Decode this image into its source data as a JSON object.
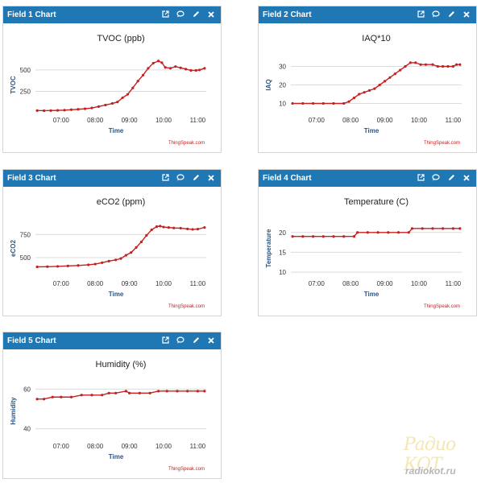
{
  "widgets": [
    {
      "header": "Field 1 Chart"
    },
    {
      "header": "Field 2 Chart"
    },
    {
      "header": "Field 3 Chart"
    },
    {
      "header": "Field 4 Chart"
    },
    {
      "header": "Field 5 Chart"
    }
  ],
  "credit": "ThingSpeak.com",
  "watermark": {
    "line1": "Радио КОТ",
    "line2": "radiokot.ru"
  },
  "colors": {
    "header": "#1f78b4",
    "series": "#c62020",
    "axis_label": "#2a5684",
    "credit": "#c62020"
  },
  "icons": [
    "external-link-icon",
    "comment-icon",
    "pencil-icon",
    "close-icon"
  ],
  "chart_data": [
    {
      "type": "line",
      "title": "TVOC (ppb)",
      "xlabel": "Time",
      "ylabel": "TVOC",
      "xlim": [
        6.25,
        11.25
      ],
      "ylim": [
        0,
        650
      ],
      "x_ticks": [
        {
          "v": 7,
          "label": "07:00"
        },
        {
          "v": 8,
          "label": "08:00"
        },
        {
          "v": 9,
          "label": "09:00"
        },
        {
          "v": 10,
          "label": "10:00"
        },
        {
          "v": 11,
          "label": "11:00"
        }
      ],
      "y_ticks": [
        {
          "v": 250,
          "label": "250"
        },
        {
          "v": 500,
          "label": "500"
        }
      ],
      "grid": true,
      "series": [
        {
          "points": [
            [
              6.3,
              25
            ],
            [
              6.5,
              24
            ],
            [
              6.7,
              25
            ],
            [
              6.9,
              27
            ],
            [
              7.1,
              30
            ],
            [
              7.3,
              35
            ],
            [
              7.5,
              40
            ],
            [
              7.7,
              46
            ],
            [
              7.9,
              55
            ],
            [
              8.1,
              72
            ],
            [
              8.3,
              90
            ],
            [
              8.5,
              108
            ],
            [
              8.65,
              125
            ],
            [
              8.8,
              175
            ],
            [
              8.95,
              215
            ],
            [
              9.1,
              290
            ],
            [
              9.25,
              370
            ],
            [
              9.4,
              440
            ],
            [
              9.55,
              520
            ],
            [
              9.7,
              580
            ],
            [
              9.85,
              605
            ],
            [
              9.95,
              585
            ],
            [
              10.05,
              530
            ],
            [
              10.2,
              520
            ],
            [
              10.35,
              540
            ],
            [
              10.5,
              525
            ],
            [
              10.65,
              510
            ],
            [
              10.8,
              495
            ],
            [
              10.95,
              495
            ],
            [
              11.05,
              500
            ],
            [
              11.2,
              520
            ]
          ]
        }
      ]
    },
    {
      "type": "line",
      "title": "IAQ*10",
      "xlabel": "Time",
      "ylabel": "IAQ",
      "xlim": [
        6.25,
        11.25
      ],
      "ylim": [
        5,
        35
      ],
      "x_ticks": [
        {
          "v": 7,
          "label": "07:00"
        },
        {
          "v": 8,
          "label": "08:00"
        },
        {
          "v": 9,
          "label": "09:00"
        },
        {
          "v": 10,
          "label": "10:00"
        },
        {
          "v": 11,
          "label": "11:00"
        }
      ],
      "y_ticks": [
        {
          "v": 10,
          "label": "10"
        },
        {
          "v": 20,
          "label": "20"
        },
        {
          "v": 30,
          "label": "30"
        }
      ],
      "grid": true,
      "series": [
        {
          "points": [
            [
              6.3,
              10
            ],
            [
              6.6,
              10
            ],
            [
              6.9,
              10
            ],
            [
              7.2,
              10
            ],
            [
              7.5,
              10
            ],
            [
              7.8,
              10
            ],
            [
              7.95,
              11
            ],
            [
              8.1,
              13
            ],
            [
              8.25,
              15
            ],
            [
              8.4,
              16
            ],
            [
              8.55,
              17
            ],
            [
              8.7,
              18
            ],
            [
              8.85,
              20
            ],
            [
              9.0,
              22
            ],
            [
              9.15,
              24
            ],
            [
              9.3,
              26
            ],
            [
              9.45,
              28
            ],
            [
              9.6,
              30
            ],
            [
              9.75,
              32
            ],
            [
              9.9,
              32
            ],
            [
              10.05,
              31
            ],
            [
              10.2,
              31
            ],
            [
              10.4,
              31
            ],
            [
              10.55,
              30
            ],
            [
              10.7,
              30
            ],
            [
              10.85,
              30
            ],
            [
              11.0,
              30
            ],
            [
              11.1,
              31
            ],
            [
              11.2,
              31
            ]
          ]
        }
      ]
    },
    {
      "type": "line",
      "title": "eCO2 (ppm)",
      "xlabel": "Time",
      "ylabel": "eCO2",
      "xlim": [
        6.25,
        11.25
      ],
      "ylim": [
        300,
        900
      ],
      "x_ticks": [
        {
          "v": 7,
          "label": "07:00"
        },
        {
          "v": 8,
          "label": "08:00"
        },
        {
          "v": 9,
          "label": "09:00"
        },
        {
          "v": 10,
          "label": "10:00"
        },
        {
          "v": 11,
          "label": "11:00"
        }
      ],
      "y_ticks": [
        {
          "v": 500,
          "label": "500"
        },
        {
          "v": 750,
          "label": "750"
        }
      ],
      "grid": true,
      "series": [
        {
          "points": [
            [
              6.3,
              400
            ],
            [
              6.6,
              402
            ],
            [
              6.9,
              405
            ],
            [
              7.2,
              410
            ],
            [
              7.5,
              415
            ],
            [
              7.8,
              422
            ],
            [
              8.0,
              430
            ],
            [
              8.2,
              445
            ],
            [
              8.4,
              462
            ],
            [
              8.6,
              475
            ],
            [
              8.75,
              490
            ],
            [
              8.9,
              525
            ],
            [
              9.05,
              555
            ],
            [
              9.2,
              610
            ],
            [
              9.35,
              670
            ],
            [
              9.5,
              740
            ],
            [
              9.65,
              800
            ],
            [
              9.8,
              835
            ],
            [
              9.9,
              840
            ],
            [
              10.0,
              830
            ],
            [
              10.15,
              825
            ],
            [
              10.3,
              820
            ],
            [
              10.5,
              818
            ],
            [
              10.7,
              810
            ],
            [
              10.85,
              805
            ],
            [
              11.0,
              808
            ],
            [
              11.2,
              825
            ]
          ]
        }
      ]
    },
    {
      "type": "line",
      "title": "Temperature (C)",
      "xlabel": "Time",
      "ylabel": "Temperature",
      "xlim": [
        6.25,
        11.25
      ],
      "ylim": [
        9,
        23
      ],
      "x_ticks": [
        {
          "v": 7,
          "label": "07:00"
        },
        {
          "v": 8,
          "label": "08:00"
        },
        {
          "v": 9,
          "label": "09:00"
        },
        {
          "v": 10,
          "label": "10:00"
        },
        {
          "v": 11,
          "label": "11:00"
        }
      ],
      "y_ticks": [
        {
          "v": 10,
          "label": "10"
        },
        {
          "v": 15,
          "label": "15"
        },
        {
          "v": 20,
          "label": "20"
        }
      ],
      "grid": true,
      "series": [
        {
          "points": [
            [
              6.3,
              19
            ],
            [
              6.6,
              19
            ],
            [
              6.9,
              19
            ],
            [
              7.2,
              19
            ],
            [
              7.5,
              19
            ],
            [
              7.8,
              19
            ],
            [
              8.1,
              19
            ],
            [
              8.2,
              20
            ],
            [
              8.5,
              20
            ],
            [
              8.8,
              20
            ],
            [
              9.1,
              20
            ],
            [
              9.4,
              20
            ],
            [
              9.7,
              20
            ],
            [
              9.8,
              21
            ],
            [
              10.1,
              21
            ],
            [
              10.4,
              21
            ],
            [
              10.7,
              21
            ],
            [
              11.0,
              21
            ],
            [
              11.2,
              21
            ]
          ]
        }
      ]
    },
    {
      "type": "line",
      "title": "Humidity (%)",
      "xlabel": "Time",
      "ylabel": "Humidity",
      "xlim": [
        6.25,
        11.25
      ],
      "ylim": [
        35,
        63
      ],
      "x_ticks": [
        {
          "v": 7,
          "label": "07:00"
        },
        {
          "v": 8,
          "label": "08:00"
        },
        {
          "v": 9,
          "label": "09:00"
        },
        {
          "v": 10,
          "label": "10:00"
        },
        {
          "v": 11,
          "label": "11:00"
        }
      ],
      "y_ticks": [
        {
          "v": 40,
          "label": "40"
        },
        {
          "v": 60,
          "label": "60"
        }
      ],
      "grid": true,
      "series": [
        {
          "points": [
            [
              6.3,
              55
            ],
            [
              6.5,
              55
            ],
            [
              6.75,
              56
            ],
            [
              7.0,
              56
            ],
            [
              7.3,
              56
            ],
            [
              7.6,
              57
            ],
            [
              7.9,
              57
            ],
            [
              8.2,
              57
            ],
            [
              8.4,
              58
            ],
            [
              8.6,
              58
            ],
            [
              8.9,
              59
            ],
            [
              9.0,
              58
            ],
            [
              9.3,
              58
            ],
            [
              9.6,
              58
            ],
            [
              9.85,
              59
            ],
            [
              10.1,
              59
            ],
            [
              10.4,
              59
            ],
            [
              10.7,
              59
            ],
            [
              11.0,
              59
            ],
            [
              11.2,
              59
            ]
          ]
        }
      ]
    }
  ]
}
